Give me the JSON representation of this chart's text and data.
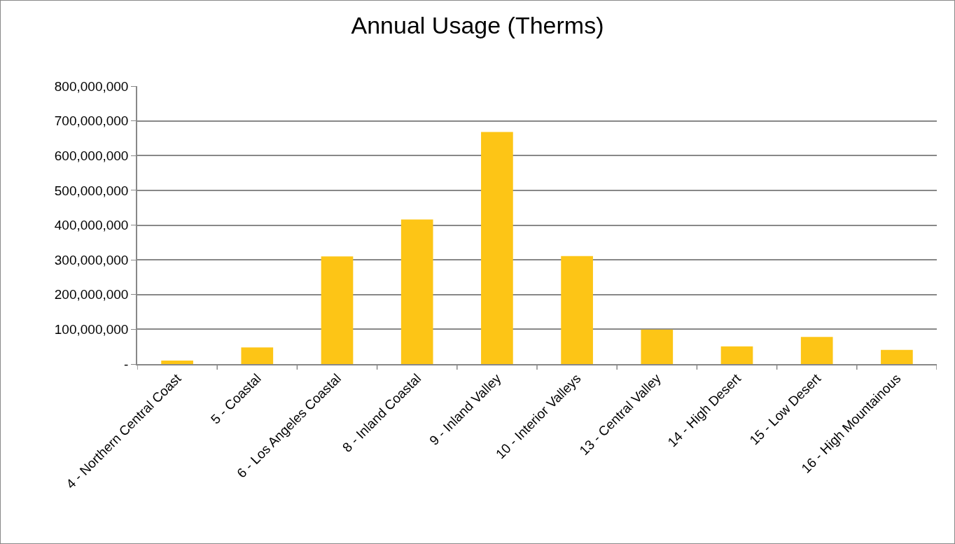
{
  "chart_data": {
    "type": "bar",
    "title": "Annual Usage (Therms)",
    "categories": [
      "4 - Northern Central Coast",
      "5 - Coastal",
      "6 - Los Angeles Coastal",
      "8 - Inland Coastal",
      "9 - Inland Valley",
      "10 - Interior Valleys",
      "13 - Central Valley",
      "14 - High Desert",
      "15 - Low Desert",
      "16 - High Mountainous"
    ],
    "values": [
      10000000,
      48000000,
      310000000,
      416000000,
      668000000,
      311000000,
      99000000,
      51000000,
      78000000,
      41000000
    ],
    "color": "#fdc516",
    "ylim": [
      0,
      800000000
    ],
    "yticks": [
      {
        "value": 0,
        "label": "-"
      },
      {
        "value": 100000000,
        "label": "100,000,000"
      },
      {
        "value": 200000000,
        "label": "200,000,000"
      },
      {
        "value": 300000000,
        "label": "300,000,000"
      },
      {
        "value": 400000000,
        "label": "400,000,000"
      },
      {
        "value": 500000000,
        "label": "500,000,000"
      },
      {
        "value": 600000000,
        "label": "600,000,000"
      },
      {
        "value": 700000000,
        "label": "700,000,000"
      },
      {
        "value": 800000000,
        "label": "800,000,000"
      }
    ],
    "grid": "y",
    "legend": false
  }
}
